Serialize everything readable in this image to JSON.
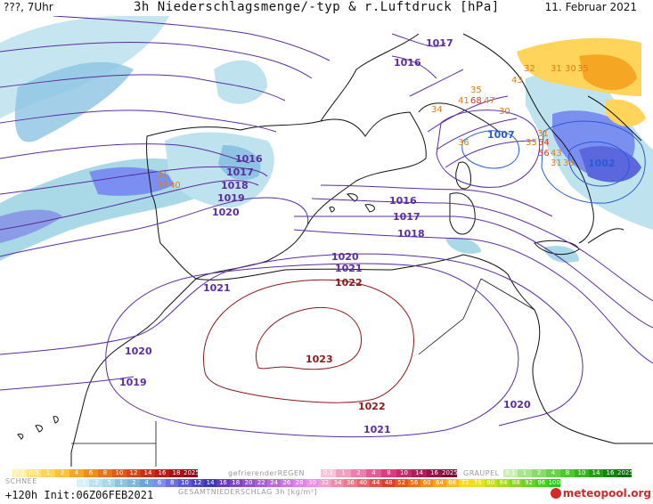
{
  "header": {
    "left": "???, 7Uhr",
    "title": "3h Niederschlagsmenge/-typ & r.Luftdruck [hPa]",
    "date": "11. Februar 2021"
  },
  "isobars": [
    {
      "id": "1023",
      "value": "1023",
      "color": "#8b1a1a"
    },
    {
      "id": "1022",
      "value": "1022",
      "color": "#8b1a1a"
    },
    {
      "id": "1021",
      "value": "1021",
      "color": "#5b2ca0"
    },
    {
      "id": "1020",
      "value": "1020",
      "color": "#5b2ca0"
    },
    {
      "id": "1019",
      "value": "1019",
      "color": "#5b2ca0"
    },
    {
      "id": "1018",
      "value": "1018",
      "color": "#5b2ca0"
    },
    {
      "id": "1017",
      "value": "1017",
      "color": "#5b2ca0"
    },
    {
      "id": "1016",
      "value": "1016",
      "color": "#5b2ca0"
    },
    {
      "id": "1007",
      "value": "1007",
      "color": "#2a5bd7"
    },
    {
      "id": "1002",
      "value": "1002",
      "color": "#2a5bd7"
    }
  ],
  "iso_labels": [
    {
      "text": "1017",
      "color": "#5b2ca0"
    },
    {
      "text": "1016",
      "color": "#5b2ca0"
    },
    {
      "text": "1016",
      "color": "#5b2ca0"
    },
    {
      "text": "1017",
      "color": "#5b2ca0"
    },
    {
      "text": "1018",
      "color": "#5b2ca0"
    },
    {
      "text": "1019",
      "color": "#5b2ca0"
    },
    {
      "text": "1020",
      "color": "#5b2ca0"
    },
    {
      "text": "1016",
      "color": "#5b2ca0"
    },
    {
      "text": "1017",
      "color": "#5b2ca0"
    },
    {
      "text": "1018",
      "color": "#5b2ca0"
    },
    {
      "text": "1020",
      "color": "#5b2ca0"
    },
    {
      "text": "1021",
      "color": "#5b2ca0"
    },
    {
      "text": "1021",
      "color": "#5b2ca0"
    },
    {
      "text": "1022",
      "color": "#8b1a1a"
    },
    {
      "text": "1023",
      "color": "#8b1a1a"
    },
    {
      "text": "1022",
      "color": "#8b1a1a"
    },
    {
      "text": "1020",
      "color": "#5b2ca0"
    },
    {
      "text": "1019",
      "color": "#5b2ca0"
    },
    {
      "text": "1021",
      "color": "#5b2ca0"
    },
    {
      "text": "1020",
      "color": "#5b2ca0"
    },
    {
      "text": "1007",
      "color": "#2a5bd7"
    },
    {
      "text": "1002",
      "color": "#2a5bd7"
    }
  ],
  "precip_values": [
    {
      "text": "32",
      "color": "#e07b1a"
    },
    {
      "text": "31",
      "color": "#e07b1a"
    },
    {
      "text": "30",
      "color": "#e07b1a"
    },
    {
      "text": "35",
      "color": "#e07b1a"
    },
    {
      "text": "43",
      "color": "#e07b1a"
    },
    {
      "text": "35",
      "color": "#e07b1a"
    },
    {
      "text": "41",
      "color": "#e07b1a"
    },
    {
      "text": "68",
      "color": "#e0301a"
    },
    {
      "text": "47",
      "color": "#e07b1a"
    },
    {
      "text": "30",
      "color": "#e07b1a"
    },
    {
      "text": "34",
      "color": "#e07b1a"
    },
    {
      "text": "36",
      "color": "#e07b1a"
    },
    {
      "text": "31",
      "color": "#e07b1a"
    },
    {
      "text": "33",
      "color": "#e07b1a"
    },
    {
      "text": "54",
      "color": "#e0301a"
    },
    {
      "text": "56",
      "color": "#e0301a"
    },
    {
      "text": "43",
      "color": "#e07b1a"
    },
    {
      "text": "31",
      "color": "#e07b1a"
    },
    {
      "text": "33",
      "color": "#e07b1a"
    },
    {
      "text": "33",
      "color": "#e07b1a"
    },
    {
      "text": "31",
      "color": "#e07b1a"
    },
    {
      "text": "40",
      "color": "#e07b1a"
    }
  ],
  "legend": {
    "schnee_label": "SCHNEE",
    "schnee": [
      "0.1",
      "0.5",
      "1",
      "2",
      "4",
      "6",
      "8",
      "10",
      "12",
      "14",
      "16",
      "18",
      "2025+"
    ],
    "regen_label": "gefrierenderREGEN",
    "regen": [
      "0.1",
      "1",
      "2",
      "4",
      "8",
      "10",
      "14",
      "16",
      "2025+"
    ],
    "graupel_label": "GRAUPEL",
    "graupel": [
      "0.1",
      "1",
      "2",
      "4",
      "8",
      "10",
      "14",
      "16",
      "2025+"
    ],
    "rain": [
      ".1",
      ".2",
      ".5",
      "1",
      "2",
      "4",
      "6",
      "8",
      "10",
      "12",
      "14",
      "16",
      "18",
      "20",
      "22",
      "24",
      "26",
      "28",
      "30",
      "32",
      "34",
      "36",
      "40",
      "44",
      "48",
      "52",
      "56",
      "60",
      "64",
      "68",
      "72",
      "76",
      "80",
      "84",
      "88",
      "92",
      "96",
      "100"
    ],
    "rain_label": "GESAMTNIEDERSCHLAG 3h [kg/m²]"
  },
  "footer": {
    "run": "+120h Init:06Z06FEB2021",
    "logo": "meteopool.org"
  },
  "colors": {
    "land_outline": "#111111",
    "precip_light": "#a9d8e6",
    "precip_med": "#7ab9da",
    "precip_heavy": "#6b6fe0",
    "snow_light": "#ffd45a",
    "snow_med": "#f5a623"
  }
}
